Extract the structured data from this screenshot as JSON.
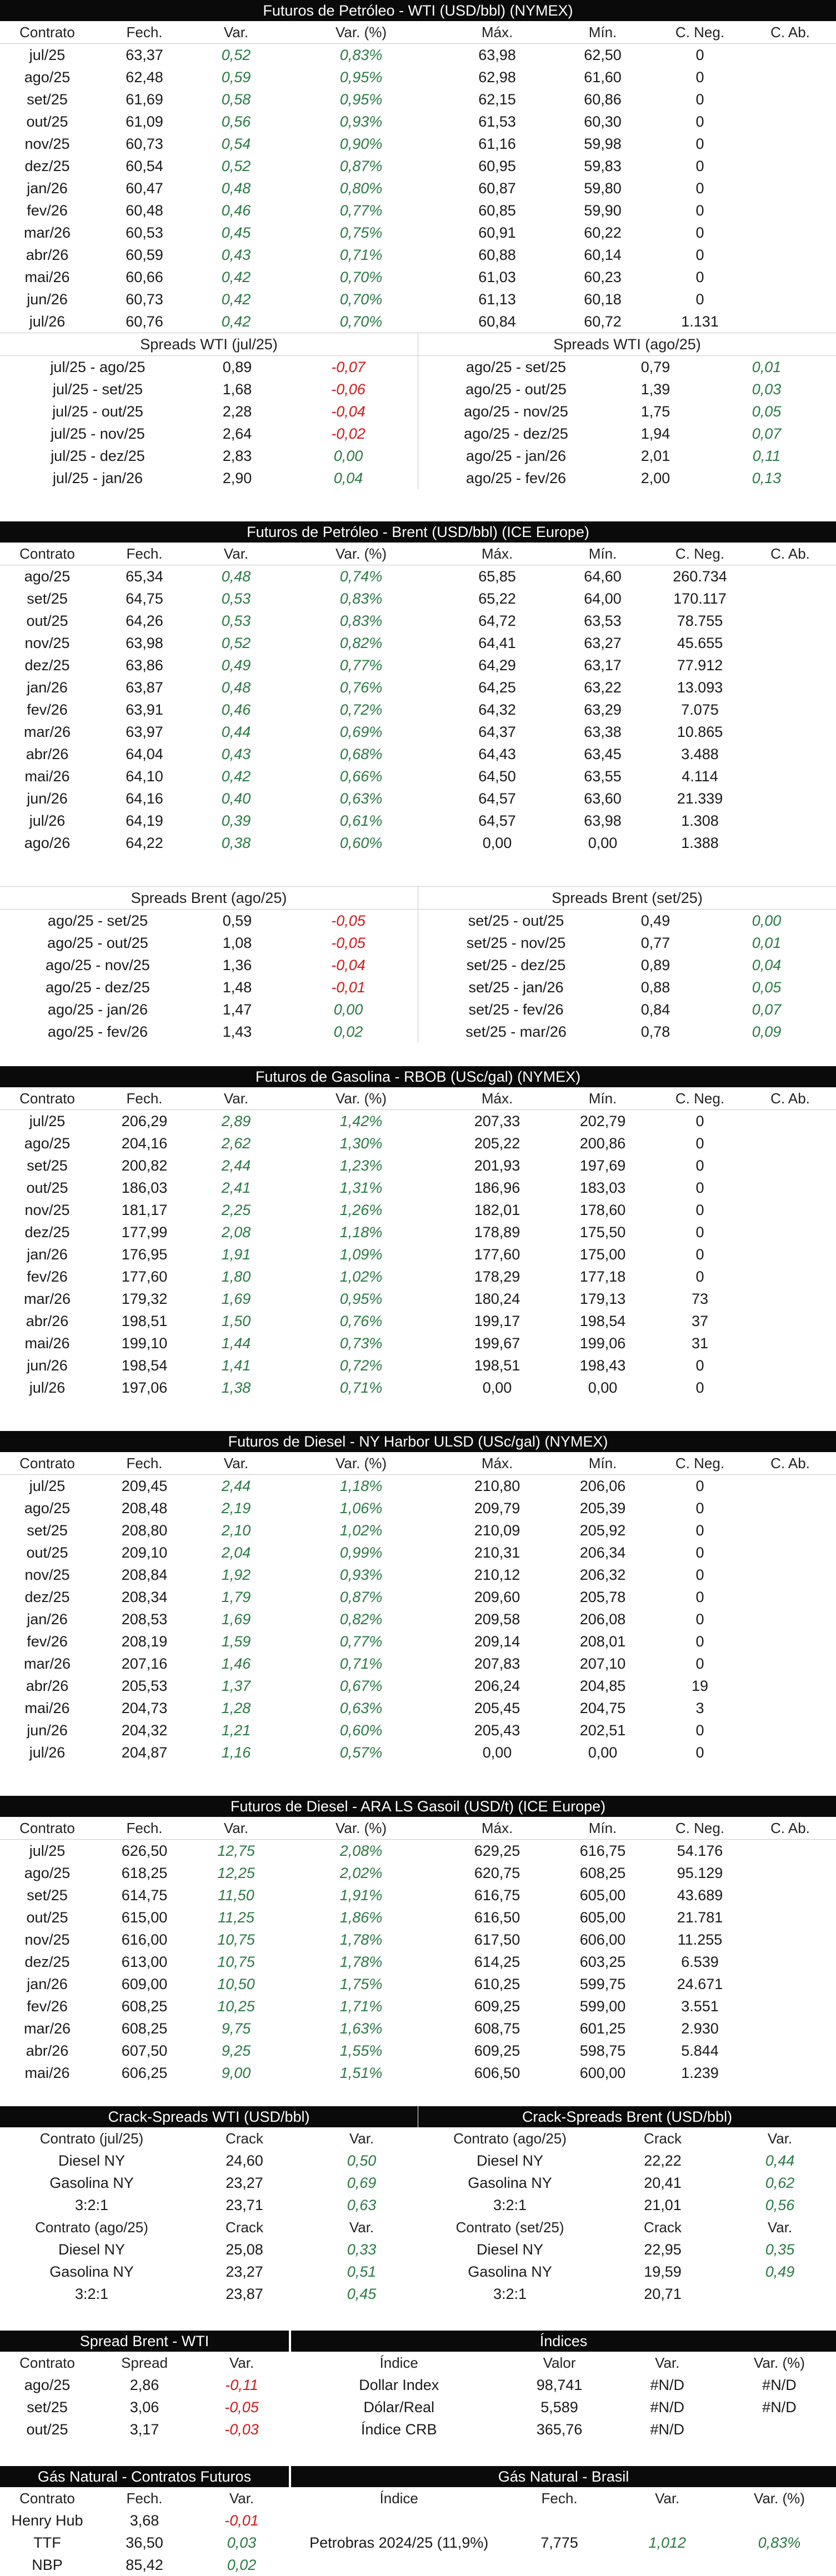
{
  "headers": {
    "contrato": "Contrato",
    "fech": "Fech.",
    "var": "Var.",
    "varpct": "Var. (%)",
    "max": "Máx.",
    "min": "Mín.",
    "cneg": "C. Neg.",
    "cab": "C. Ab."
  },
  "colors": {
    "positive": "#2a7a44",
    "negative": "#d11a1a",
    "title_bg": "#0a0a0a"
  },
  "wti": {
    "title": "Futuros de Petróleo - WTI (USD/bbl) (NYMEX)",
    "rows": [
      [
        "jul/25",
        "63,37",
        "0,52",
        "0,83%",
        "63,98",
        "62,50",
        "0",
        ""
      ],
      [
        "ago/25",
        "62,48",
        "0,59",
        "0,95%",
        "62,98",
        "61,60",
        "0",
        ""
      ],
      [
        "set/25",
        "61,69",
        "0,58",
        "0,95%",
        "62,15",
        "60,86",
        "0",
        ""
      ],
      [
        "out/25",
        "61,09",
        "0,56",
        "0,93%",
        "61,53",
        "60,30",
        "0",
        ""
      ],
      [
        "nov/25",
        "60,73",
        "0,54",
        "0,90%",
        "61,16",
        "59,98",
        "0",
        ""
      ],
      [
        "dez/25",
        "60,54",
        "0,52",
        "0,87%",
        "60,95",
        "59,83",
        "0",
        ""
      ],
      [
        "jan/26",
        "60,47",
        "0,48",
        "0,80%",
        "60,87",
        "59,80",
        "0",
        ""
      ],
      [
        "fev/26",
        "60,48",
        "0,46",
        "0,77%",
        "60,85",
        "59,90",
        "0",
        ""
      ],
      [
        "mar/26",
        "60,53",
        "0,45",
        "0,75%",
        "60,91",
        "60,22",
        "0",
        ""
      ],
      [
        "abr/26",
        "60,59",
        "0,43",
        "0,71%",
        "60,88",
        "60,14",
        "0",
        ""
      ],
      [
        "mai/26",
        "60,66",
        "0,42",
        "0,70%",
        "61,03",
        "60,23",
        "0",
        ""
      ],
      [
        "jun/26",
        "60,73",
        "0,42",
        "0,70%",
        "61,13",
        "60,18",
        "0",
        ""
      ],
      [
        "jul/26",
        "60,76",
        "0,42",
        "0,70%",
        "60,84",
        "60,72",
        "1.131",
        ""
      ]
    ]
  },
  "wti_spreads": {
    "left_title": "Spreads WTI (jul/25)",
    "left": [
      [
        "jul/25 - ago/25",
        "0,89",
        "-0,07"
      ],
      [
        "jul/25 - set/25",
        "1,68",
        "-0,06"
      ],
      [
        "jul/25 - out/25",
        "2,28",
        "-0,04"
      ],
      [
        "jul/25 - nov/25",
        "2,64",
        "-0,02"
      ],
      [
        "jul/25 - dez/25",
        "2,83",
        "0,00"
      ],
      [
        "jul/25 - jan/26",
        "2,90",
        "0,04"
      ]
    ],
    "right_title": "Spreads WTI (ago/25)",
    "right": [
      [
        "ago/25 - set/25",
        "0,79",
        "0,01"
      ],
      [
        "ago/25 - out/25",
        "1,39",
        "0,03"
      ],
      [
        "ago/25 - nov/25",
        "1,75",
        "0,05"
      ],
      [
        "ago/25 - dez/25",
        "1,94",
        "0,07"
      ],
      [
        "ago/25 - jan/26",
        "2,01",
        "0,11"
      ],
      [
        "ago/25 - fev/26",
        "2,00",
        "0,13"
      ]
    ]
  },
  "brent": {
    "title": "Futuros de Petróleo - Brent (USD/bbl) (ICE Europe)",
    "rows": [
      [
        "ago/25",
        "65,34",
        "0,48",
        "0,74%",
        "65,85",
        "64,60",
        "260.734",
        ""
      ],
      [
        "set/25",
        "64,75",
        "0,53",
        "0,83%",
        "65,22",
        "64,00",
        "170.117",
        ""
      ],
      [
        "out/25",
        "64,26",
        "0,53",
        "0,83%",
        "64,72",
        "63,53",
        "78.755",
        ""
      ],
      [
        "nov/25",
        "63,98",
        "0,52",
        "0,82%",
        "64,41",
        "63,27",
        "45.655",
        ""
      ],
      [
        "dez/25",
        "63,86",
        "0,49",
        "0,77%",
        "64,29",
        "63,17",
        "77.912",
        ""
      ],
      [
        "jan/26",
        "63,87",
        "0,48",
        "0,76%",
        "64,25",
        "63,22",
        "13.093",
        ""
      ],
      [
        "fev/26",
        "63,91",
        "0,46",
        "0,72%",
        "64,32",
        "63,29",
        "7.075",
        ""
      ],
      [
        "mar/26",
        "63,97",
        "0,44",
        "0,69%",
        "64,37",
        "63,38",
        "10.865",
        ""
      ],
      [
        "abr/26",
        "64,04",
        "0,43",
        "0,68%",
        "64,43",
        "63,45",
        "3.488",
        ""
      ],
      [
        "mai/26",
        "64,10",
        "0,42",
        "0,66%",
        "64,50",
        "63,55",
        "4.114",
        ""
      ],
      [
        "jun/26",
        "64,16",
        "0,40",
        "0,63%",
        "64,57",
        "63,60",
        "21.339",
        ""
      ],
      [
        "jul/26",
        "64,19",
        "0,39",
        "0,61%",
        "64,57",
        "63,98",
        "1.308",
        ""
      ],
      [
        "ago/26",
        "64,22",
        "0,38",
        "0,60%",
        "0,00",
        "0,00",
        "1.388",
        ""
      ]
    ]
  },
  "brent_spreads": {
    "left_title": "Spreads Brent (ago/25)",
    "left": [
      [
        "ago/25 - set/25",
        "0,59",
        "-0,05"
      ],
      [
        "ago/25 - out/25",
        "1,08",
        "-0,05"
      ],
      [
        "ago/25 - nov/25",
        "1,36",
        "-0,04"
      ],
      [
        "ago/25 - dez/25",
        "1,48",
        "-0,01"
      ],
      [
        "ago/25 - jan/26",
        "1,47",
        "0,00"
      ],
      [
        "ago/25 - fev/26",
        "1,43",
        "0,02"
      ]
    ],
    "right_title": "Spreads Brent (set/25)",
    "right": [
      [
        "set/25 - out/25",
        "0,49",
        "0,00"
      ],
      [
        "set/25 - nov/25",
        "0,77",
        "0,01"
      ],
      [
        "set/25 - dez/25",
        "0,89",
        "0,04"
      ],
      [
        "set/25 - jan/26",
        "0,88",
        "0,05"
      ],
      [
        "set/25 - fev/26",
        "0,84",
        "0,07"
      ],
      [
        "set/25 - mar/26",
        "0,78",
        "0,09"
      ]
    ]
  },
  "rbob": {
    "title": "Futuros de Gasolina - RBOB (USc/gal) (NYMEX)",
    "rows": [
      [
        "jul/25",
        "206,29",
        "2,89",
        "1,42%",
        "207,33",
        "202,79",
        "0",
        ""
      ],
      [
        "ago/25",
        "204,16",
        "2,62",
        "1,30%",
        "205,22",
        "200,86",
        "0",
        ""
      ],
      [
        "set/25",
        "200,82",
        "2,44",
        "1,23%",
        "201,93",
        "197,69",
        "0",
        ""
      ],
      [
        "out/25",
        "186,03",
        "2,41",
        "1,31%",
        "186,96",
        "183,03",
        "0",
        ""
      ],
      [
        "nov/25",
        "181,17",
        "2,25",
        "1,26%",
        "182,01",
        "178,60",
        "0",
        ""
      ],
      [
        "dez/25",
        "177,99",
        "2,08",
        "1,18%",
        "178,89",
        "175,50",
        "0",
        ""
      ],
      [
        "jan/26",
        "176,95",
        "1,91",
        "1,09%",
        "177,60",
        "175,00",
        "0",
        ""
      ],
      [
        "fev/26",
        "177,60",
        "1,80",
        "1,02%",
        "178,29",
        "177,18",
        "0",
        ""
      ],
      [
        "mar/26",
        "179,32",
        "1,69",
        "0,95%",
        "180,24",
        "179,13",
        "73",
        ""
      ],
      [
        "abr/26",
        "198,51",
        "1,50",
        "0,76%",
        "199,17",
        "198,54",
        "37",
        ""
      ],
      [
        "mai/26",
        "199,10",
        "1,44",
        "0,73%",
        "199,67",
        "199,06",
        "31",
        ""
      ],
      [
        "jun/26",
        "198,54",
        "1,41",
        "0,72%",
        "198,51",
        "198,43",
        "0",
        ""
      ],
      [
        "jul/26",
        "197,06",
        "1,38",
        "0,71%",
        "0,00",
        "0,00",
        "0",
        ""
      ]
    ]
  },
  "ulsd": {
    "title": "Futuros de Diesel - NY Harbor ULSD (USc/gal) (NYMEX)",
    "rows": [
      [
        "jul/25",
        "209,45",
        "2,44",
        "1,18%",
        "210,80",
        "206,06",
        "0",
        ""
      ],
      [
        "ago/25",
        "208,48",
        "2,19",
        "1,06%",
        "209,79",
        "205,39",
        "0",
        ""
      ],
      [
        "set/25",
        "208,80",
        "2,10",
        "1,02%",
        "210,09",
        "205,92",
        "0",
        ""
      ],
      [
        "out/25",
        "209,10",
        "2,04",
        "0,99%",
        "210,31",
        "206,34",
        "0",
        ""
      ],
      [
        "nov/25",
        "208,84",
        "1,92",
        "0,93%",
        "210,12",
        "206,32",
        "0",
        ""
      ],
      [
        "dez/25",
        "208,34",
        "1,79",
        "0,87%",
        "209,60",
        "205,78",
        "0",
        ""
      ],
      [
        "jan/26",
        "208,53",
        "1,69",
        "0,82%",
        "209,58",
        "206,08",
        "0",
        ""
      ],
      [
        "fev/26",
        "208,19",
        "1,59",
        "0,77%",
        "209,14",
        "208,01",
        "0",
        ""
      ],
      [
        "mar/26",
        "207,16",
        "1,46",
        "0,71%",
        "207,83",
        "207,10",
        "0",
        ""
      ],
      [
        "abr/26",
        "205,53",
        "1,37",
        "0,67%",
        "206,24",
        "204,85",
        "19",
        ""
      ],
      [
        "mai/26",
        "204,73",
        "1,28",
        "0,63%",
        "205,45",
        "204,75",
        "3",
        ""
      ],
      [
        "jun/26",
        "204,32",
        "1,21",
        "0,60%",
        "205,43",
        "202,51",
        "0",
        ""
      ],
      [
        "jul/26",
        "204,87",
        "1,16",
        "0,57%",
        "0,00",
        "0,00",
        "0",
        ""
      ]
    ]
  },
  "gasoil": {
    "title": "Futuros de Diesel - ARA LS Gasoil (USD/t) (ICE Europe)",
    "rows": [
      [
        "jul/25",
        "626,50",
        "12,75",
        "2,08%",
        "629,25",
        "616,75",
        "54.176",
        ""
      ],
      [
        "ago/25",
        "618,25",
        "12,25",
        "2,02%",
        "620,75",
        "608,25",
        "95.129",
        ""
      ],
      [
        "set/25",
        "614,75",
        "11,50",
        "1,91%",
        "616,75",
        "605,00",
        "43.689",
        ""
      ],
      [
        "out/25",
        "615,00",
        "11,25",
        "1,86%",
        "616,50",
        "605,00",
        "21.781",
        ""
      ],
      [
        "nov/25",
        "616,00",
        "10,75",
        "1,78%",
        "617,50",
        "606,00",
        "11.255",
        ""
      ],
      [
        "dez/25",
        "613,00",
        "10,75",
        "1,78%",
        "614,25",
        "603,25",
        "6.539",
        ""
      ],
      [
        "jan/26",
        "609,00",
        "10,50",
        "1,75%",
        "610,25",
        "599,75",
        "24.671",
        ""
      ],
      [
        "fev/26",
        "608,25",
        "10,25",
        "1,71%",
        "609,25",
        "599,00",
        "3.551",
        ""
      ],
      [
        "mar/26",
        "608,25",
        "9,75",
        "1,63%",
        "608,75",
        "601,25",
        "2.930",
        ""
      ],
      [
        "abr/26",
        "607,50",
        "9,25",
        "1,55%",
        "609,25",
        "598,75",
        "5.844",
        ""
      ],
      [
        "mai/26",
        "606,25",
        "9,00",
        "1,51%",
        "606,50",
        "600,00",
        "1.239",
        ""
      ]
    ]
  },
  "crack": {
    "left_title": "Crack-Spreads WTI (USD/bbl)",
    "right_title": "Crack-Spreads Brent (USD/bbl)",
    "crack_label": "Crack",
    "left_blocks": [
      {
        "contract": "Contrato (jul/25)",
        "rows": [
          [
            "Diesel NY",
            "24,60",
            "0,50"
          ],
          [
            "Gasolina NY",
            "23,27",
            "0,69"
          ],
          [
            "3:2:1",
            "23,71",
            "0,63"
          ]
        ]
      },
      {
        "contract": "Contrato (ago/25)",
        "rows": [
          [
            "Diesel NY",
            "25,08",
            "0,33"
          ],
          [
            "Gasolina NY",
            "23,27",
            "0,51"
          ],
          [
            "3:2:1",
            "23,87",
            "0,45"
          ]
        ]
      }
    ],
    "right_blocks": [
      {
        "contract": "Contrato (ago/25)",
        "rows": [
          [
            "Diesel NY",
            "22,22",
            "0,44"
          ],
          [
            "Gasolina NY",
            "20,41",
            "0,62"
          ],
          [
            "3:2:1",
            "21,01",
            "0,56"
          ]
        ]
      },
      {
        "contract": "Contrato (set/25)",
        "rows": [
          [
            "Diesel NY",
            "22,95",
            "0,35"
          ],
          [
            "Gasolina NY",
            "19,59",
            "0,49"
          ],
          [
            "3:2:1",
            "20,71",
            ""
          ]
        ]
      }
    ]
  },
  "spread_brent_wti": {
    "title": "Spread Brent - WTI",
    "h_contrato": "Contrato",
    "h_spread": "Spread",
    "h_var": "Var.",
    "rows": [
      [
        "ago/25",
        "2,86",
        "-0,11"
      ],
      [
        "set/25",
        "3,06",
        "-0,05"
      ],
      [
        "out/25",
        "3,17",
        "-0,03"
      ]
    ]
  },
  "indices": {
    "title": "Índices",
    "h_indice": "Índice",
    "h_valor": "Valor",
    "h_var": "Var.",
    "h_varpct": "Var. (%)",
    "rows": [
      [
        "Dollar Index",
        "98,741",
        "#N/D",
        "#N/D"
      ],
      [
        "Dólar/Real",
        "5,589",
        "#N/D",
        "#N/D"
      ],
      [
        "Índice CRB",
        "365,76",
        "#N/D",
        ""
      ]
    ]
  },
  "gas_futuros": {
    "title": "Gás Natural - Contratos Futuros",
    "h_contrato": "Contrato",
    "h_fech": "Fech.",
    "h_var": "Var.",
    "rows": [
      [
        "Henry Hub",
        "3,68",
        "-0,01"
      ],
      [
        "TTF",
        "36,50",
        "0,03"
      ],
      [
        "NBP",
        "85,42",
        "0,02"
      ]
    ]
  },
  "gas_brasil": {
    "title": "Gás Natural - Brasil",
    "h_indice": "Índice",
    "h_fech": "Fech.",
    "h_var": "Var.",
    "h_varpct": "Var. (%)",
    "rows": [
      [
        "Petrobras 2024/25 (11,9%)",
        "7,775",
        "1,012",
        "0,83%"
      ]
    ]
  }
}
